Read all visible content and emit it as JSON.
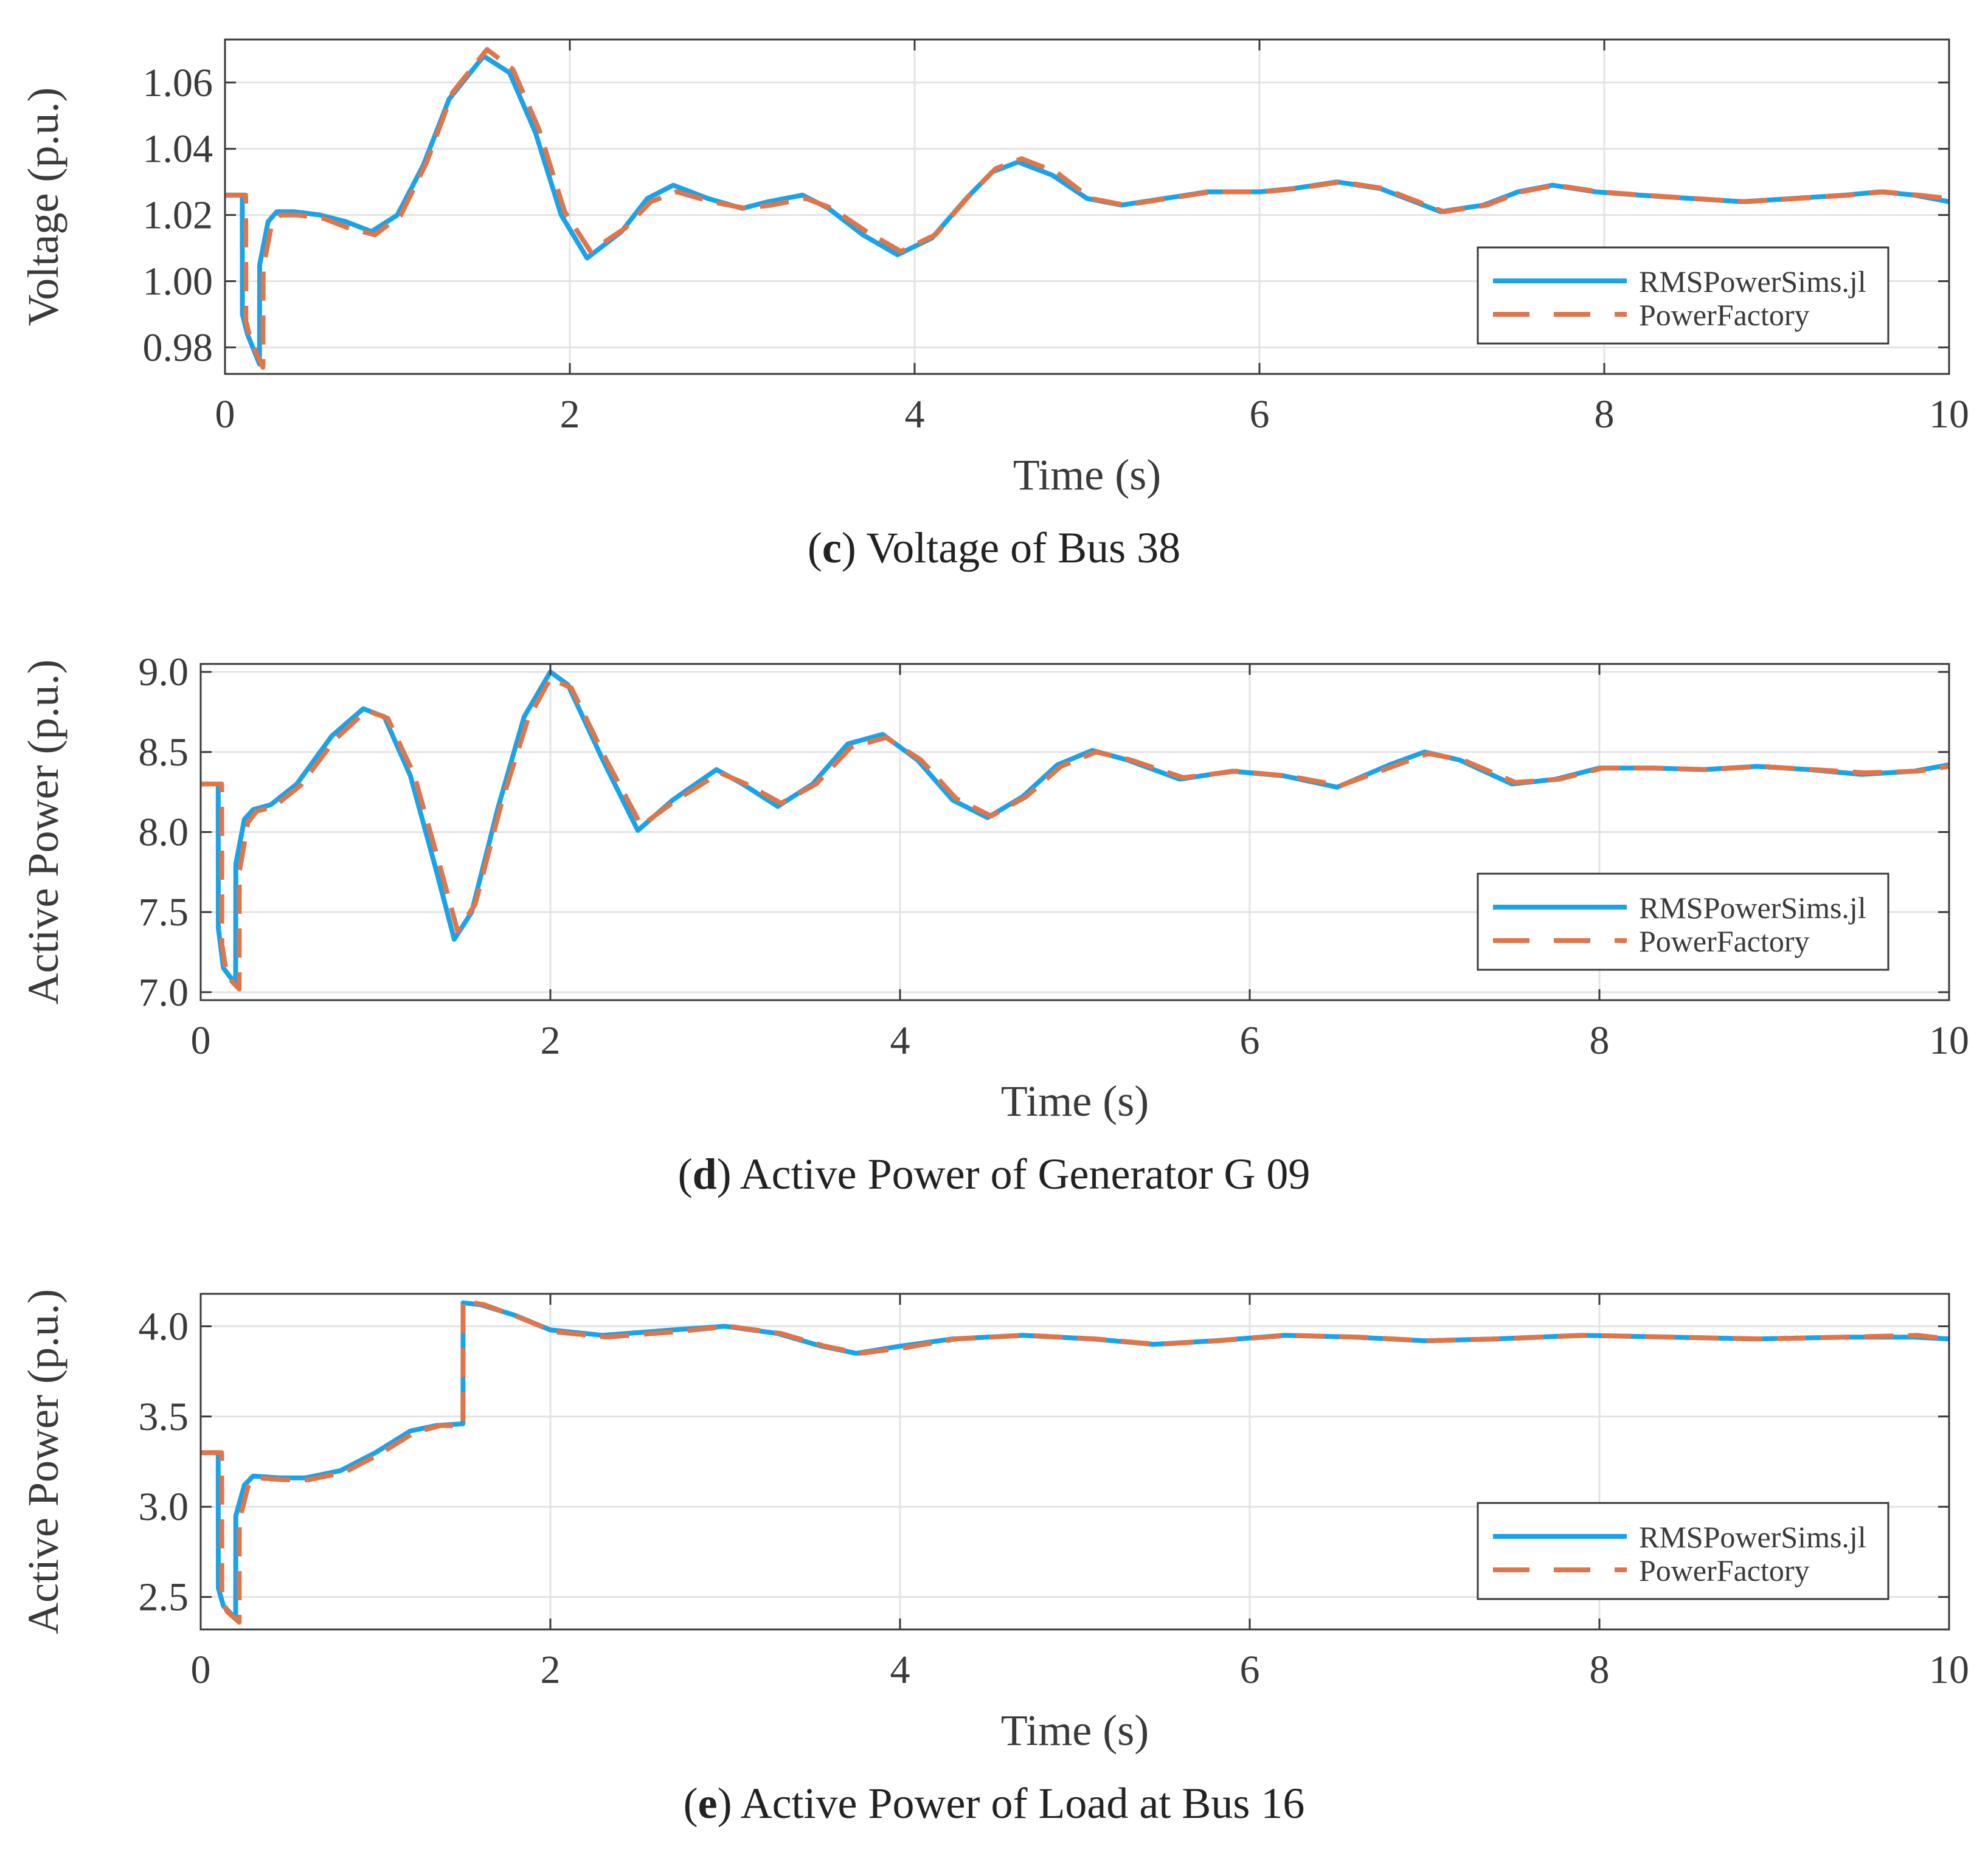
{
  "chart_data": [
    {
      "type": "line",
      "label": "c",
      "caption": "Voltage of Bus 38",
      "xlabel": "Time (s)",
      "ylabel": "Voltage (p.u.)",
      "xlim": [
        0,
        10
      ],
      "ylim": [
        0.972,
        1.073
      ],
      "xticks": [
        0,
        2,
        4,
        6,
        8,
        10
      ],
      "yticks": [
        0.98,
        1.0,
        1.02,
        1.04,
        1.06
      ],
      "ytick_labels": [
        "0.98",
        "1.00",
        "1.02",
        "1.04",
        "1.06"
      ],
      "grid": true,
      "legend_position": "bottom-right",
      "series": [
        {
          "name": "RMSPowerSims.jl",
          "color": "#1aa3e8",
          "style": "solid",
          "x": [
            0,
            0.1,
            0.101,
            0.13,
            0.2,
            0.201,
            0.25,
            0.3,
            0.4,
            0.55,
            0.7,
            0.85,
            1.0,
            1.15,
            1.3,
            1.5,
            1.65,
            1.8,
            1.95,
            2.1,
            2.3,
            2.45,
            2.6,
            2.8,
            3.0,
            3.15,
            3.35,
            3.5,
            3.7,
            3.9,
            4.1,
            4.3,
            4.45,
            4.6,
            4.8,
            5.0,
            5.2,
            5.45,
            5.7,
            6.0,
            6.2,
            6.45,
            6.7,
            6.9,
            7.05,
            7.3,
            7.5,
            7.7,
            7.95,
            8.2,
            8.5,
            8.8,
            9.1,
            9.4,
            9.6,
            9.8,
            10
          ],
          "y": [
            1.026,
            1.026,
            0.99,
            0.984,
            0.975,
            1.005,
            1.018,
            1.021,
            1.021,
            1.02,
            1.018,
            1.015,
            1.02,
            1.035,
            1.055,
            1.068,
            1.063,
            1.045,
            1.02,
            1.007,
            1.015,
            1.025,
            1.029,
            1.025,
            1.022,
            1.024,
            1.026,
            1.022,
            1.014,
            1.008,
            1.013,
            1.025,
            1.033,
            1.036,
            1.032,
            1.025,
            1.023,
            1.025,
            1.027,
            1.027,
            1.028,
            1.03,
            1.028,
            1.024,
            1.021,
            1.023,
            1.027,
            1.029,
            1.027,
            1.026,
            1.025,
            1.024,
            1.025,
            1.026,
            1.027,
            1.026,
            1.024
          ]
        },
        {
          "name": "PowerFactory",
          "color": "#e0754a",
          "style": "dashed",
          "x": [
            0,
            0.12,
            0.121,
            0.15,
            0.22,
            0.221,
            0.27,
            0.32,
            0.42,
            0.57,
            0.72,
            0.87,
            1.02,
            1.17,
            1.32,
            1.52,
            1.67,
            1.82,
            1.97,
            2.12,
            2.32,
            2.47,
            2.62,
            2.82,
            3.02,
            3.17,
            3.37,
            3.52,
            3.72,
            3.92,
            4.12,
            4.32,
            4.47,
            4.62,
            4.82,
            5.02,
            5.22,
            5.47,
            5.72,
            6.02,
            6.22,
            6.47,
            6.72,
            6.92,
            7.07,
            7.32,
            7.52,
            7.72,
            7.97,
            8.22,
            8.52,
            8.82,
            9.12,
            9.42,
            9.62,
            9.82,
            10
          ],
          "y": [
            1.026,
            1.026,
            0.988,
            0.982,
            0.974,
            1.004,
            1.017,
            1.02,
            1.02,
            1.019,
            1.016,
            1.014,
            1.02,
            1.036,
            1.057,
            1.07,
            1.064,
            1.046,
            1.021,
            1.009,
            1.016,
            1.024,
            1.027,
            1.024,
            1.022,
            1.023,
            1.025,
            1.022,
            1.015,
            1.009,
            1.014,
            1.026,
            1.034,
            1.037,
            1.033,
            1.025,
            1.023,
            1.025,
            1.027,
            1.027,
            1.028,
            1.03,
            1.028,
            1.024,
            1.021,
            1.023,
            1.027,
            1.029,
            1.027,
            1.026,
            1.025,
            1.024,
            1.025,
            1.026,
            1.027,
            1.026,
            1.025
          ]
        }
      ]
    },
    {
      "type": "line",
      "label": "d",
      "caption": "Active Power of Generator G 09",
      "xlabel": "Time (s)",
      "ylabel": "Active Power (p.u.)",
      "xlim": [
        0,
        10
      ],
      "ylim": [
        6.95,
        9.05
      ],
      "xticks": [
        0,
        2,
        4,
        6,
        8,
        10
      ],
      "yticks": [
        7.0,
        7.5,
        8.0,
        8.5,
        9.0
      ],
      "ytick_labels": [
        "7.0",
        "7.5",
        "8.0",
        "8.5",
        "9.0"
      ],
      "grid": true,
      "legend_position": "bottom-right",
      "series": [
        {
          "name": "RMSPowerSims.jl",
          "color": "#1aa3e8",
          "style": "solid",
          "x": [
            0,
            0.1,
            0.101,
            0.13,
            0.2,
            0.201,
            0.25,
            0.3,
            0.4,
            0.55,
            0.75,
            0.93,
            1.05,
            1.2,
            1.35,
            1.45,
            1.55,
            1.7,
            1.85,
            2.0,
            2.1,
            2.3,
            2.5,
            2.7,
            2.95,
            3.1,
            3.3,
            3.5,
            3.7,
            3.9,
            4.1,
            4.3,
            4.5,
            4.7,
            4.9,
            5.1,
            5.3,
            5.6,
            5.9,
            6.2,
            6.5,
            6.8,
            7.0,
            7.2,
            7.5,
            7.75,
            8.0,
            8.3,
            8.6,
            8.9,
            9.2,
            9.5,
            9.8,
            10
          ],
          "y": [
            8.3,
            8.3,
            7.4,
            7.15,
            7.05,
            7.8,
            8.08,
            8.14,
            8.17,
            8.3,
            8.6,
            8.77,
            8.72,
            8.35,
            7.75,
            7.33,
            7.5,
            8.15,
            8.72,
            9.0,
            8.92,
            8.45,
            8.01,
            8.2,
            8.39,
            8.3,
            8.16,
            8.3,
            8.55,
            8.61,
            8.45,
            8.2,
            8.09,
            8.22,
            8.42,
            8.51,
            8.45,
            8.33,
            8.38,
            8.35,
            8.28,
            8.42,
            8.5,
            8.45,
            8.3,
            8.33,
            8.4,
            8.4,
            8.39,
            8.41,
            8.39,
            8.36,
            8.38,
            8.42
          ]
        },
        {
          "name": "PowerFactory",
          "color": "#e0754a",
          "style": "dashed",
          "x": [
            0,
            0.12,
            0.121,
            0.15,
            0.22,
            0.221,
            0.27,
            0.32,
            0.42,
            0.57,
            0.77,
            0.95,
            1.07,
            1.22,
            1.37,
            1.47,
            1.57,
            1.72,
            1.87,
            2.0,
            2.12,
            2.32,
            2.52,
            2.72,
            2.97,
            3.12,
            3.32,
            3.52,
            3.72,
            3.92,
            4.12,
            4.32,
            4.52,
            4.72,
            4.92,
            5.12,
            5.32,
            5.62,
            5.92,
            6.22,
            6.52,
            6.82,
            7.02,
            7.22,
            7.52,
            7.77,
            8.02,
            8.32,
            8.62,
            8.92,
            9.22,
            9.52,
            9.82,
            10
          ],
          "y": [
            8.3,
            8.3,
            7.3,
            7.1,
            7.02,
            7.75,
            8.06,
            8.13,
            8.16,
            8.29,
            8.58,
            8.76,
            8.71,
            8.36,
            7.78,
            7.38,
            7.55,
            8.18,
            8.7,
            8.96,
            8.9,
            8.45,
            8.04,
            8.2,
            8.37,
            8.3,
            8.18,
            8.3,
            8.53,
            8.59,
            8.45,
            8.21,
            8.1,
            8.22,
            8.41,
            8.5,
            8.45,
            8.34,
            8.38,
            8.35,
            8.29,
            8.41,
            8.49,
            8.45,
            8.31,
            8.33,
            8.4,
            8.4,
            8.39,
            8.41,
            8.39,
            8.37,
            8.38,
            8.41
          ]
        }
      ]
    },
    {
      "type": "line",
      "label": "e",
      "caption": "Active Power of Load at Bus 16",
      "xlabel": "Time (s)",
      "ylabel": "Active Power (p.u.)",
      "xlim": [
        0,
        10
      ],
      "ylim": [
        2.32,
        4.18
      ],
      "xticks": [
        0,
        2,
        4,
        6,
        8,
        10
      ],
      "yticks": [
        2.5,
        3.0,
        3.5,
        4.0
      ],
      "ytick_labels": [
        "2.5",
        "3.0",
        "3.5",
        "4.0"
      ],
      "grid": true,
      "legend_position": "bottom-right",
      "series": [
        {
          "name": "RMSPowerSims.jl",
          "color": "#1aa3e8",
          "style": "solid",
          "x": [
            0,
            0.1,
            0.101,
            0.13,
            0.2,
            0.201,
            0.25,
            0.3,
            0.45,
            0.6,
            0.8,
            1.0,
            1.2,
            1.35,
            1.5,
            1.501,
            1.6,
            1.8,
            2.0,
            2.3,
            2.7,
            3.0,
            3.3,
            3.55,
            3.75,
            4.0,
            4.3,
            4.7,
            5.1,
            5.45,
            5.8,
            6.2,
            6.6,
            7.0,
            7.4,
            7.9,
            8.4,
            8.9,
            9.4,
            9.8,
            10
          ],
          "y": [
            3.3,
            3.3,
            2.55,
            2.45,
            2.38,
            2.95,
            3.12,
            3.17,
            3.16,
            3.16,
            3.2,
            3.3,
            3.42,
            3.45,
            3.46,
            4.13,
            4.12,
            4.06,
            3.98,
            3.95,
            3.98,
            4.0,
            3.96,
            3.89,
            3.85,
            3.89,
            3.93,
            3.95,
            3.93,
            3.9,
            3.92,
            3.95,
            3.94,
            3.92,
            3.93,
            3.95,
            3.94,
            3.93,
            3.94,
            3.94,
            3.93
          ]
        },
        {
          "name": "PowerFactory",
          "color": "#e0754a",
          "style": "dashed",
          "x": [
            0,
            0.12,
            0.121,
            0.15,
            0.22,
            0.221,
            0.27,
            0.32,
            0.47,
            0.62,
            0.82,
            1.02,
            1.22,
            1.37,
            1.5,
            1.501,
            1.62,
            1.82,
            2.02,
            2.32,
            2.72,
            3.02,
            3.32,
            3.57,
            3.77,
            4.02,
            4.32,
            4.72,
            5.12,
            5.47,
            5.82,
            6.22,
            6.62,
            7.02,
            7.42,
            7.92,
            8.42,
            8.92,
            9.42,
            9.82,
            10
          ],
          "y": [
            3.3,
            3.3,
            2.5,
            2.42,
            2.36,
            2.92,
            3.11,
            3.16,
            3.15,
            3.15,
            3.19,
            3.29,
            3.41,
            3.45,
            3.45,
            4.14,
            4.12,
            4.05,
            3.97,
            3.94,
            3.97,
            4.0,
            3.96,
            3.89,
            3.85,
            3.88,
            3.93,
            3.95,
            3.93,
            3.9,
            3.92,
            3.95,
            3.94,
            3.92,
            3.93,
            3.95,
            3.94,
            3.93,
            3.94,
            3.95,
            3.93
          ]
        }
      ]
    }
  ]
}
